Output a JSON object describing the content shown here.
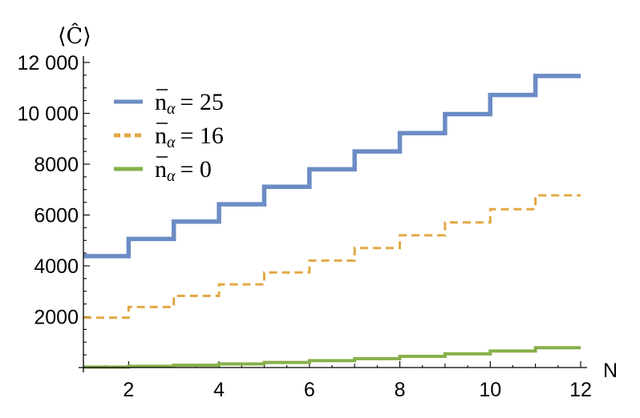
{
  "chart_data": {
    "type": "line",
    "step": true,
    "title": "",
    "xlabel": "N",
    "ylabel": "⟨Ĉ⟩",
    "xlim": [
      1,
      12
    ],
    "ylim": [
      0,
      12000
    ],
    "x_ticks": [
      2,
      4,
      6,
      8,
      10,
      12
    ],
    "y_ticks": [
      2000,
      4000,
      6000,
      8000,
      10000,
      12000
    ],
    "y_tick_labels": [
      "2000",
      "4000",
      "6000",
      "8000",
      "10 000",
      "12 000"
    ],
    "x": [
      1,
      2,
      3,
      4,
      5,
      6,
      7,
      8,
      9,
      10,
      11,
      12
    ],
    "legend_position": "top-left",
    "series": [
      {
        "name": "n̄α = 25",
        "legend_main": "n",
        "legend_sub": "α",
        "legend_rest": "= 25",
        "color": "#6b8cc4",
        "dash": "solid",
        "width": 5.5,
        "values": [
          4380,
          5060,
          5740,
          6420,
          7110,
          7800,
          8500,
          9220,
          9970,
          10720,
          11470,
          11470
        ]
      },
      {
        "name": "n̄α = 16",
        "legend_main": "n",
        "legend_sub": "α",
        "legend_rest": "= 16",
        "color": "#e2a845",
        "dash": "dashed",
        "width": 3,
        "values": [
          1960,
          2380,
          2820,
          3270,
          3740,
          4210,
          4700,
          5200,
          5710,
          6230,
          6770,
          6770
        ]
      },
      {
        "name": "n̄α = 0",
        "legend_main": "n",
        "legend_sub": "α",
        "legend_rest": "= 0",
        "color": "#86b04a",
        "dash": "solid",
        "width": 4,
        "values": [
          20,
          50,
          90,
          140,
          200,
          270,
          350,
          440,
          540,
          650,
          780,
          780
        ]
      }
    ]
  }
}
